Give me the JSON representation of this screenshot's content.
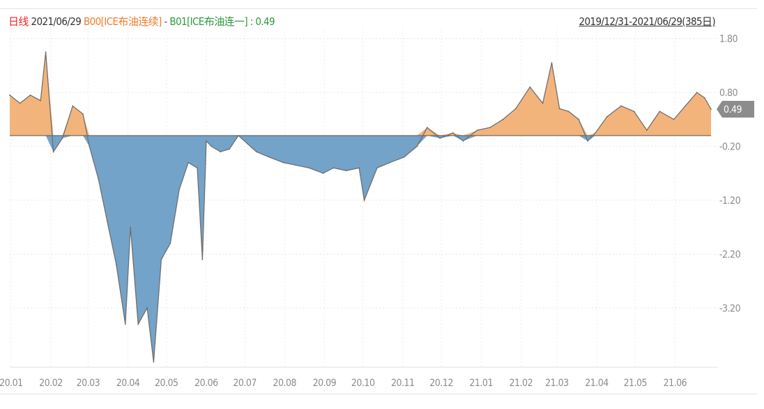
{
  "header": {
    "frequency": "日线",
    "date": "2021/06/29",
    "series1": "B00[ICE布油连续]",
    "separator": "-",
    "series2": "B01[ICE布油连一]",
    "value_text": ": 0.49",
    "range": "2019/12/31-2021/06/29(385日)"
  },
  "colors": {
    "positive_fill": "#f3b47c",
    "negative_fill": "#73a3c9",
    "line": "#6f6f6f",
    "last_label_bg": "#8c8c8c"
  },
  "chart_data": {
    "type": "area",
    "x_ticks": [
      "20.01",
      "20.02",
      "20.03",
      "20.04",
      "20.05",
      "20.06",
      "20.07",
      "20.08",
      "20.09",
      "20.10",
      "20.11",
      "20.12",
      "21.01",
      "21.02",
      "21.03",
      "21.04",
      "21.05",
      "21.06"
    ],
    "y_ticks": [
      "1.80",
      "0.80",
      "-0.20",
      "-1.20",
      "-2.20",
      "-3.20"
    ],
    "ylim": [
      -4.3,
      2.0
    ],
    "last_value_label": "0.49",
    "grid": true,
    "baseline": 0,
    "x": [
      "2019-12-31",
      "2020-01-08",
      "2020-01-16",
      "2020-01-24",
      "2020-01-28",
      "2020-02-03",
      "2020-02-10",
      "2020-02-18",
      "2020-02-26",
      "2020-03-02",
      "2020-03-09",
      "2020-03-16",
      "2020-03-23",
      "2020-03-30",
      "2020-04-03",
      "2020-04-09",
      "2020-04-16",
      "2020-04-21",
      "2020-04-27",
      "2020-05-04",
      "2020-05-11",
      "2020-05-18",
      "2020-05-25",
      "2020-05-29",
      "2020-06-01",
      "2020-06-05",
      "2020-06-12",
      "2020-06-19",
      "2020-06-26",
      "2020-07-03",
      "2020-07-10",
      "2020-07-20",
      "2020-07-31",
      "2020-08-10",
      "2020-08-20",
      "2020-08-31",
      "2020-09-08",
      "2020-09-18",
      "2020-09-28",
      "2020-10-02",
      "2020-10-12",
      "2020-10-22",
      "2020-11-02",
      "2020-11-12",
      "2020-11-20",
      "2020-11-30",
      "2020-12-10",
      "2020-12-18",
      "2020-12-29",
      "2021-01-08",
      "2021-01-18",
      "2021-01-28",
      "2021-02-08",
      "2021-02-18",
      "2021-02-25",
      "2021-03-03",
      "2021-03-10",
      "2021-03-18",
      "2021-03-25",
      "2021-03-31",
      "2021-04-09",
      "2021-04-20",
      "2021-04-30",
      "2021-05-10",
      "2021-05-20",
      "2021-05-31",
      "2021-06-09",
      "2021-06-18",
      "2021-06-24",
      "2021-06-29"
    ],
    "y": [
      0.75,
      0.6,
      0.75,
      0.65,
      1.55,
      -0.3,
      -0.05,
      0.55,
      0.4,
      -0.2,
      -0.8,
      -1.6,
      -2.4,
      -3.5,
      -1.7,
      -3.5,
      -3.2,
      -4.2,
      -2.3,
      -2.0,
      -1.0,
      -0.5,
      -0.6,
      -2.3,
      -0.1,
      -0.2,
      -0.3,
      -0.25,
      0.0,
      -0.15,
      -0.3,
      -0.4,
      -0.5,
      -0.55,
      -0.6,
      -0.7,
      -0.6,
      -0.65,
      -0.6,
      -1.2,
      -0.6,
      -0.5,
      -0.4,
      -0.2,
      0.15,
      -0.05,
      0.05,
      -0.1,
      0.1,
      0.15,
      0.3,
      0.5,
      0.9,
      0.6,
      1.35,
      0.5,
      0.45,
      0.3,
      -0.1,
      0.05,
      0.35,
      0.55,
      0.45,
      0.1,
      0.45,
      0.3,
      0.55,
      0.8,
      0.7,
      0.49
    ]
  }
}
